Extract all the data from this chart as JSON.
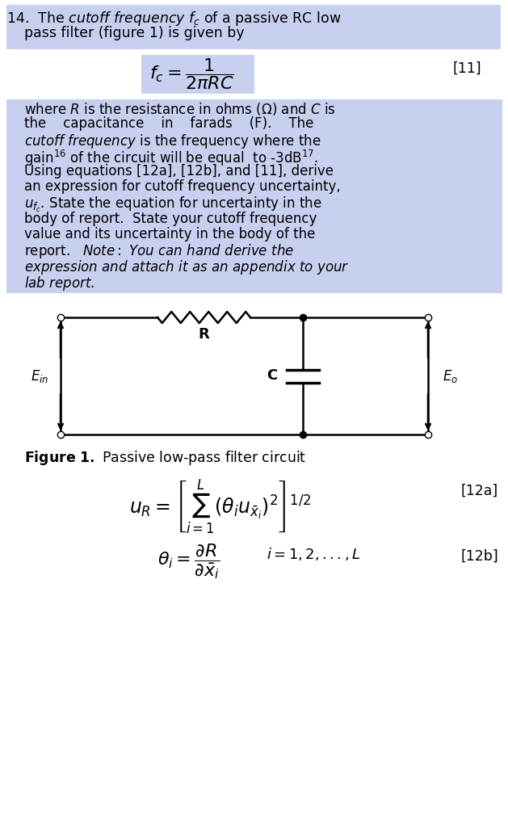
{
  "bg_color": "#ffffff",
  "highlight_color": "#c8d0f0",
  "text_color": "#000000",
  "fig_width": 6.29,
  "fig_height": 10.24,
  "line14_text": "14.  The cutoff frequency f_c of a passive RC low\n     pass filter (figure 1) is given by",
  "equation_fc": "f_c = \\frac{1}{2\\pi RC}",
  "ref_11": "[11]",
  "paragraph": "where R is the resistance in ohms (Ω) and C is\nthe    capacitance    in    farads    (F).    The\ncutoff frequency is the frequency where the\ngain¹⁶ of the circuit will be equal  to -3dB¹⁷.\nUsing equations [12a], [12b], and [11], derive\nan expression for cutoff frequency uncertainty,\nu_fc. State the equation for uncertainty in the\nbody of report.  State your cutoff frequency\nvalue and its uncertainty in the body of the\nreport.    Note: You can hand derive the\nexpression and attach it as an appendix to your\nlab report.",
  "figure_caption": "Figure 1. Passive low-pass filter circuit",
  "eq12a_label": "[12a]",
  "eq12b_label": "[12b]"
}
